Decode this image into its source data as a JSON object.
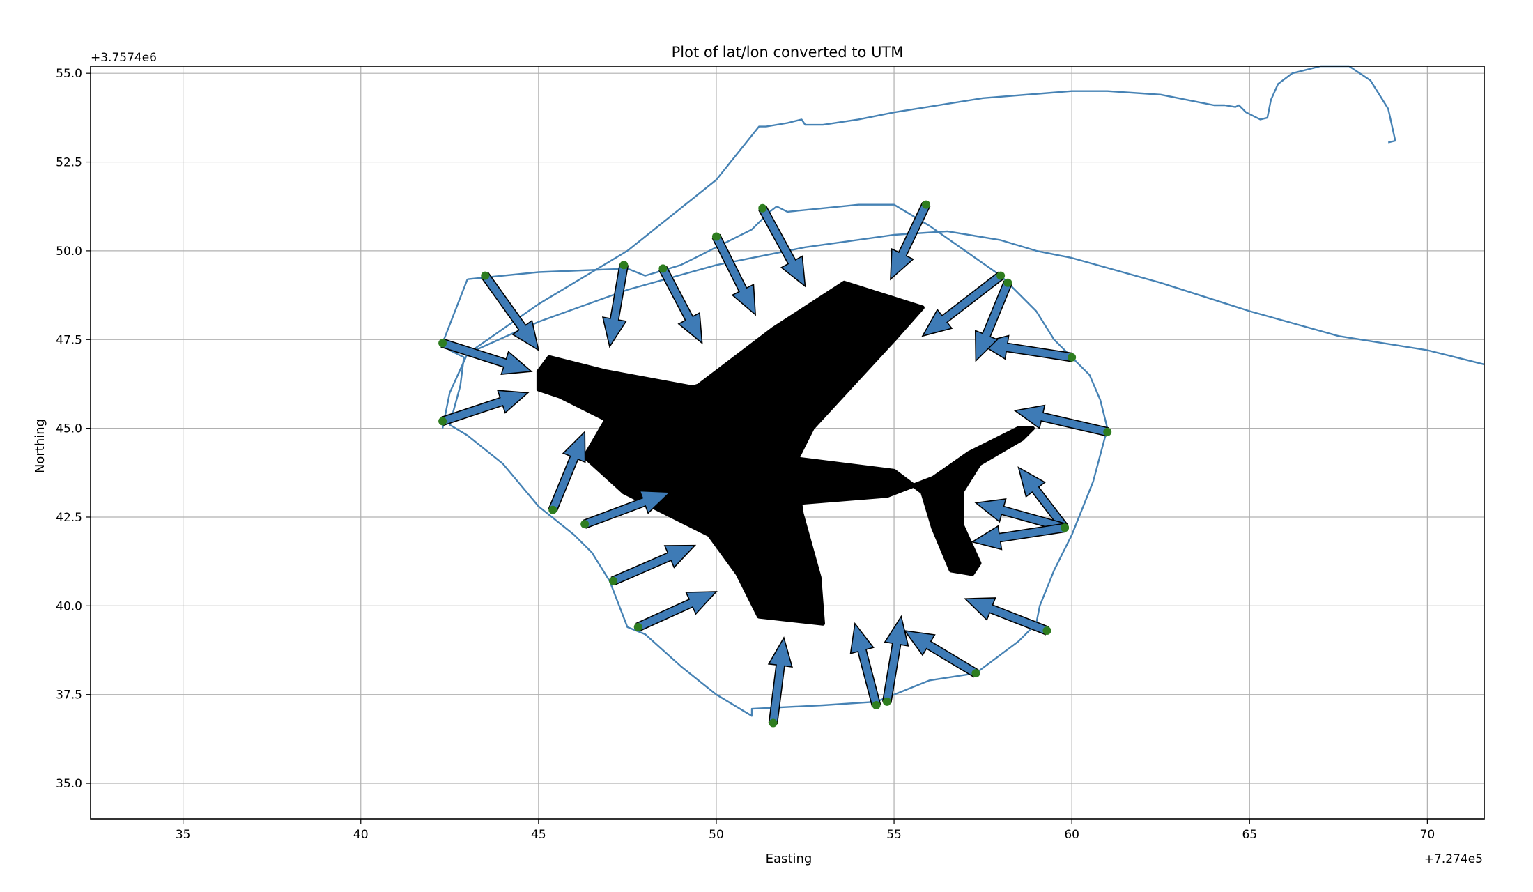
{
  "chart_data": {
    "type": "line",
    "title": "Plot of lat/lon converted to UTM",
    "xlabel": "Easting",
    "ylabel": "Northing",
    "x_offset_label": "+7.274e5",
    "y_offset_label": "+3.7574e6",
    "xlim": [
      32.4,
      71.6
    ],
    "ylim": [
      34.0,
      55.2
    ],
    "xticks": [
      35,
      40,
      45,
      50,
      55,
      60,
      65,
      70
    ],
    "yticks": [
      35.0,
      37.5,
      40.0,
      42.5,
      45.0,
      47.5,
      50.0,
      52.5,
      55.0
    ],
    "grid": true,
    "colors": {
      "track": "#4682b4",
      "arrow_fill": "#3e7bb6",
      "arrow_edge": "#000000",
      "point": "#2e7d1f",
      "airplane": "#000000",
      "grid": "#b0b0b0"
    },
    "series": [
      {
        "type": "line",
        "x": [
          43.0,
          45.0,
          47.5,
          50.0,
          51.2,
          51.4,
          52.0,
          52.4,
          52.5,
          53.0,
          54.0,
          55.0,
          57.5,
          60.0,
          61.0,
          62.5,
          63.5,
          64.0,
          64.3,
          64.6,
          64.7,
          64.9,
          65.3,
          65.5,
          65.6,
          65.8,
          66.2,
          67.0,
          67.5,
          67.8,
          68.4,
          68.9,
          69.1,
          68.9
        ],
        "y": [
          47.1,
          48.5,
          50.0,
          52.0,
          53.5,
          53.5,
          53.6,
          53.7,
          53.55,
          53.55,
          53.7,
          53.9,
          54.3,
          54.5,
          54.5,
          54.4,
          54.2,
          54.1,
          54.1,
          54.05,
          54.1,
          53.9,
          53.7,
          53.75,
          54.25,
          54.7,
          55.0,
          55.2,
          55.2,
          55.2,
          54.8,
          54.0,
          53.1,
          53.05
        ]
      },
      {
        "type": "line",
        "x": [
          42.3,
          42.5,
          43.0,
          45.0,
          47.5,
          50.0,
          52.5,
          55.0,
          56.5,
          58.0,
          59.0,
          60.0,
          62.5,
          65.0,
          67.5,
          70.0,
          71.6
        ],
        "y": [
          45.0,
          46.0,
          47.1,
          48.0,
          48.9,
          49.6,
          50.1,
          50.45,
          50.55,
          50.3,
          50.0,
          49.8,
          49.1,
          48.3,
          47.6,
          47.2,
          46.8
        ]
      },
      {
        "type": "line",
        "x": [
          43.0,
          45.0,
          47.5,
          48.0,
          49.0,
          50.0,
          51.0,
          51.5,
          51.7,
          52.0,
          53.0,
          54.0,
          55.0,
          56.0,
          57.0,
          58.0,
          58.5,
          59.0,
          59.5,
          60.0,
          60.5,
          60.8,
          61.0,
          60.6,
          60.0,
          59.5,
          59.1,
          59.0,
          58.5,
          57.3,
          56.0,
          55.0,
          54.5,
          53.0,
          51.0,
          51.0,
          50.0,
          49.0,
          48.0,
          47.5,
          47.0,
          46.5,
          46.0,
          45.5,
          45.0,
          44.0,
          43.0,
          42.5,
          42.8,
          42.9,
          42.5,
          42.3,
          43.0
        ],
        "y": [
          49.2,
          49.4,
          49.5,
          49.3,
          49.6,
          50.1,
          50.6,
          51.1,
          51.25,
          51.1,
          51.2,
          51.3,
          51.3,
          50.7,
          50.0,
          49.3,
          48.8,
          48.3,
          47.5,
          47.0,
          46.5,
          45.8,
          45.0,
          43.5,
          42.0,
          41.0,
          40.0,
          39.5,
          39.0,
          38.1,
          37.9,
          37.5,
          37.3,
          37.2,
          37.1,
          36.9,
          37.5,
          38.3,
          39.2,
          39.4,
          40.7,
          41.5,
          42.0,
          42.4,
          42.8,
          44.0,
          44.8,
          45.1,
          46.2,
          47.0,
          47.2,
          47.4,
          49.2
        ]
      },
      {
        "type": "arrows",
        "points": [
          {
            "x": 43.5,
            "y": 49.3,
            "tx": 45.0,
            "ty": 47.2
          },
          {
            "x": 42.3,
            "y": 47.4,
            "tx": 44.8,
            "ty": 46.6
          },
          {
            "x": 42.3,
            "y": 45.2,
            "tx": 44.7,
            "ty": 46.0
          },
          {
            "x": 45.4,
            "y": 42.7,
            "tx": 46.3,
            "ty": 44.9
          },
          {
            "x": 46.3,
            "y": 42.3,
            "tx": 48.7,
            "ty": 43.2
          },
          {
            "x": 47.1,
            "y": 40.7,
            "tx": 49.4,
            "ty": 41.7
          },
          {
            "x": 47.8,
            "y": 39.4,
            "tx": 50.0,
            "ty": 40.4
          },
          {
            "x": 51.6,
            "y": 36.7,
            "tx": 51.9,
            "ty": 39.1
          },
          {
            "x": 54.5,
            "y": 37.2,
            "tx": 53.9,
            "ty": 39.5
          },
          {
            "x": 54.8,
            "y": 37.3,
            "tx": 55.2,
            "ty": 39.7
          },
          {
            "x": 57.3,
            "y": 38.1,
            "tx": 55.3,
            "ty": 39.3
          },
          {
            "x": 59.3,
            "y": 39.3,
            "tx": 57.0,
            "ty": 40.2
          },
          {
            "x": 59.8,
            "y": 42.2,
            "tx": 58.5,
            "ty": 43.9
          },
          {
            "x": 59.8,
            "y": 42.2,
            "tx": 57.3,
            "ty": 42.9
          },
          {
            "x": 59.8,
            "y": 42.2,
            "tx": 57.2,
            "ty": 41.8
          },
          {
            "x": 61.0,
            "y": 44.9,
            "tx": 58.4,
            "ty": 45.5
          },
          {
            "x": 60.0,
            "y": 47.0,
            "tx": 57.4,
            "ty": 47.4
          },
          {
            "x": 58.2,
            "y": 49.1,
            "tx": 57.3,
            "ty": 46.9
          },
          {
            "x": 58.0,
            "y": 49.3,
            "tx": 55.8,
            "ty": 47.6
          },
          {
            "x": 55.9,
            "y": 51.3,
            "tx": 54.9,
            "ty": 49.2
          },
          {
            "x": 51.3,
            "y": 51.2,
            "tx": 52.5,
            "ty": 49.0
          },
          {
            "x": 50.0,
            "y": 50.4,
            "tx": 51.1,
            "ty": 48.2
          },
          {
            "x": 48.5,
            "y": 49.5,
            "tx": 49.6,
            "ty": 47.4
          },
          {
            "x": 47.4,
            "y": 49.6,
            "tx": 47.0,
            "ty": 47.3
          }
        ]
      }
    ],
    "airplane": {
      "fuselage": [
        [
          47.0,
          45.4
        ],
        [
          46.3,
          44.2
        ],
        [
          47.4,
          43.2
        ],
        [
          49.8,
          42.0
        ],
        [
          50.6,
          40.9
        ],
        [
          51.2,
          39.7
        ],
        [
          53.0,
          39.5
        ],
        [
          52.9,
          40.8
        ],
        [
          52.4,
          42.6
        ],
        [
          52.2,
          44.0
        ],
        [
          52.7,
          45.0
        ],
        [
          55.0,
          47.5
        ],
        [
          55.8,
          48.4
        ],
        [
          53.6,
          49.1
        ],
        [
          51.6,
          47.8
        ],
        [
          49.5,
          46.2
        ]
      ],
      "left_wing": [
        [
          45.0,
          46.6
        ],
        [
          45.3,
          47.0
        ],
        [
          46.9,
          46.6
        ],
        [
          49.6,
          46.1
        ],
        [
          49.1,
          45.0
        ],
        [
          48.4,
          44.5
        ],
        [
          45.6,
          45.9
        ],
        [
          45.0,
          46.1
        ]
      ],
      "tail": [
        [
          51.8,
          44.2
        ],
        [
          55.0,
          43.8
        ],
        [
          55.8,
          43.2
        ],
        [
          56.1,
          42.2
        ],
        [
          56.6,
          41.0
        ],
        [
          57.2,
          40.9
        ],
        [
          57.4,
          41.2
        ],
        [
          56.9,
          42.3
        ],
        [
          56.9,
          43.2
        ],
        [
          57.4,
          44.0
        ],
        [
          58.6,
          44.7
        ],
        [
          58.9,
          45.0
        ],
        [
          58.5,
          45.0
        ],
        [
          57.1,
          44.3
        ],
        [
          56.1,
          43.6
        ],
        [
          54.8,
          43.1
        ],
        [
          52.3,
          42.9
        ]
      ]
    }
  }
}
